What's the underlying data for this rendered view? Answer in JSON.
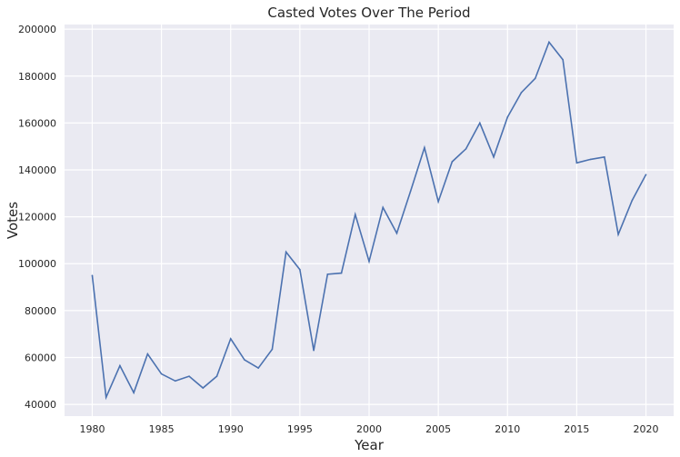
{
  "chart_data": {
    "type": "line",
    "title": "Casted Votes Over The Period",
    "xlabel": "Year",
    "ylabel": "Votes",
    "xlim": [
      1978,
      2022
    ],
    "ylim": [
      35000,
      202000
    ],
    "xticks": [
      1980,
      1985,
      1990,
      1995,
      2000,
      2005,
      2010,
      2015,
      2020
    ],
    "yticks": [
      40000,
      60000,
      80000,
      100000,
      120000,
      140000,
      160000,
      180000,
      200000
    ],
    "grid": true,
    "colors": {
      "line": "#4c72b0",
      "background": "#eaeaf2",
      "grid": "#ffffff"
    },
    "x": [
      1980,
      1981,
      1982,
      1983,
      1984,
      1985,
      1986,
      1987,
      1988,
      1989,
      1990,
      1991,
      1992,
      1993,
      1994,
      1995,
      1996,
      1997,
      1998,
      1999,
      2000,
      2001,
      2002,
      2003,
      2004,
      2005,
      2006,
      2007,
      2008,
      2009,
      2010,
      2011,
      2012,
      2013,
      2014,
      2015,
      2016,
      2017,
      2018,
      2019,
      2020
    ],
    "values": [
      95000,
      43000,
      56500,
      45000,
      61500,
      53000,
      50000,
      52000,
      47000,
      52000,
      68000,
      59000,
      55500,
      63500,
      105000,
      97500,
      63000,
      95500,
      96000,
      121000,
      101000,
      124000,
      113000,
      131000,
      149500,
      126500,
      143500,
      149000,
      160000,
      145500,
      162500,
      173000,
      179000,
      194500,
      187000,
      143000,
      144500,
      145500,
      112500,
      127000,
      138000
    ]
  }
}
